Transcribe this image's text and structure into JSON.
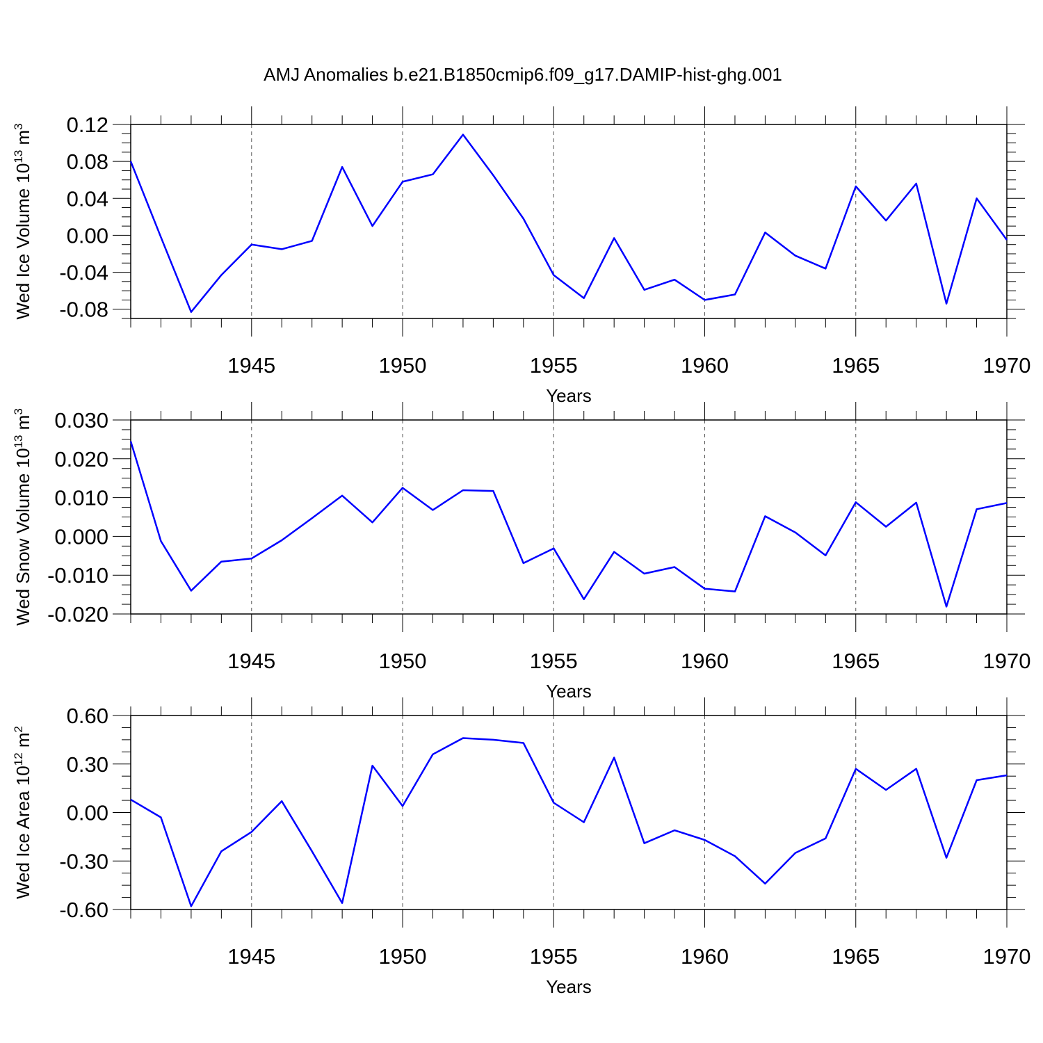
{
  "title": "AMJ Anomalies b.e21.B1850cmip6.f09_g17.DAMIP-hist-ghg.001",
  "colors": {
    "line": "#0000ff",
    "axes": "#000000",
    "grid": "#555555"
  },
  "chart_data": [
    {
      "type": "line",
      "ylabel": {
        "base": "Wed Ice Volume 10",
        "exp": "13",
        "unit": " m",
        "unit_exp": "3"
      },
      "xlabel": "Years",
      "xlim": [
        1941,
        1970
      ],
      "xticks": [
        "1945",
        "1950",
        "1955",
        "1960",
        "1965",
        "1970"
      ],
      "ylim": [
        -0.09,
        0.12
      ],
      "yticks": [
        "0.12",
        "0.08",
        "0.04",
        "0.00",
        "-0.04",
        "-0.08"
      ],
      "grid": "vertical dashed at 1945, 1950, 1955, 1960, 1965",
      "series": [
        {
          "x": [
            1941,
            1942,
            1943,
            1944,
            1945,
            1946,
            1947,
            1948,
            1949,
            1950,
            1951,
            1952,
            1953,
            1954,
            1955,
            1956,
            1957,
            1958,
            1959,
            1960,
            1961,
            1962,
            1963,
            1964,
            1965,
            1966,
            1967,
            1968,
            1969,
            1970
          ],
          "values": [
            0.08,
            -0.002,
            -0.083,
            -0.043,
            -0.01,
            -0.015,
            -0.006,
            0.074,
            0.01,
            0.058,
            0.066,
            0.109,
            0.065,
            0.018,
            -0.043,
            -0.068,
            -0.003,
            -0.059,
            -0.048,
            -0.07,
            -0.064,
            0.003,
            -0.022,
            -0.036,
            0.053,
            0.016,
            0.056,
            -0.074,
            0.04,
            -0.005
          ]
        }
      ]
    },
    {
      "type": "line",
      "ylabel": {
        "base": "Wed Snow Volume 10",
        "exp": "13",
        "unit": " m",
        "unit_exp": "3"
      },
      "xlabel": "Years",
      "xlim": [
        1941,
        1970
      ],
      "xticks": [
        "1945",
        "1950",
        "1955",
        "1960",
        "1965",
        "1970"
      ],
      "ylim": [
        -0.02,
        0.03
      ],
      "yticks": [
        "0.030",
        "0.020",
        "0.010",
        "0.000",
        "-0.010",
        "-0.020"
      ],
      "grid": "vertical dashed at 1945, 1950, 1955, 1960, 1965",
      "series": [
        {
          "x": [
            1941,
            1942,
            1943,
            1944,
            1945,
            1946,
            1947,
            1948,
            1949,
            1950,
            1951,
            1952,
            1953,
            1954,
            1955,
            1956,
            1957,
            1958,
            1959,
            1960,
            1961,
            1962,
            1963,
            1964,
            1965,
            1966,
            1967,
            1968,
            1969,
            1970
          ],
          "values": [
            0.0245,
            -0.0012,
            -0.014,
            -0.0065,
            -0.0057,
            -0.001,
            0.0047,
            0.0105,
            0.0036,
            0.0125,
            0.0068,
            0.0119,
            0.0117,
            -0.0069,
            -0.0031,
            -0.0162,
            -0.004,
            -0.0096,
            -0.0079,
            -0.0135,
            -0.0142,
            0.0052,
            0.001,
            -0.0049,
            0.0088,
            0.0025,
            0.0087,
            -0.0181,
            0.007,
            0.0086
          ]
        }
      ]
    },
    {
      "type": "line",
      "ylabel": {
        "base": "Wed Ice Area 10",
        "exp": "12",
        "unit": " m",
        "unit_exp": "2"
      },
      "xlabel": "Years",
      "xlim": [
        1941,
        1970
      ],
      "xticks": [
        "1945",
        "1950",
        "1955",
        "1960",
        "1965",
        "1970"
      ],
      "ylim": [
        -0.6,
        0.6
      ],
      "yticks": [
        "0.60",
        "0.30",
        "0.00",
        "-0.30",
        "-0.60"
      ],
      "grid": "vertical dashed at 1945, 1950, 1955, 1960, 1965",
      "series": [
        {
          "x": [
            1941,
            1942,
            1943,
            1944,
            1945,
            1946,
            1947,
            1948,
            1949,
            1950,
            1951,
            1952,
            1953,
            1954,
            1955,
            1956,
            1957,
            1958,
            1959,
            1960,
            1961,
            1962,
            1963,
            1964,
            1965,
            1966,
            1967,
            1968,
            1969,
            1970
          ],
          "values": [
            0.08,
            -0.03,
            -0.58,
            -0.24,
            -0.12,
            0.07,
            -0.24,
            -0.56,
            0.29,
            0.04,
            0.36,
            0.46,
            0.45,
            0.43,
            0.06,
            -0.06,
            0.34,
            -0.19,
            -0.11,
            -0.17,
            -0.27,
            -0.44,
            -0.25,
            -0.16,
            0.27,
            0.14,
            0.27,
            -0.28,
            0.2,
            0.23
          ]
        }
      ]
    }
  ]
}
